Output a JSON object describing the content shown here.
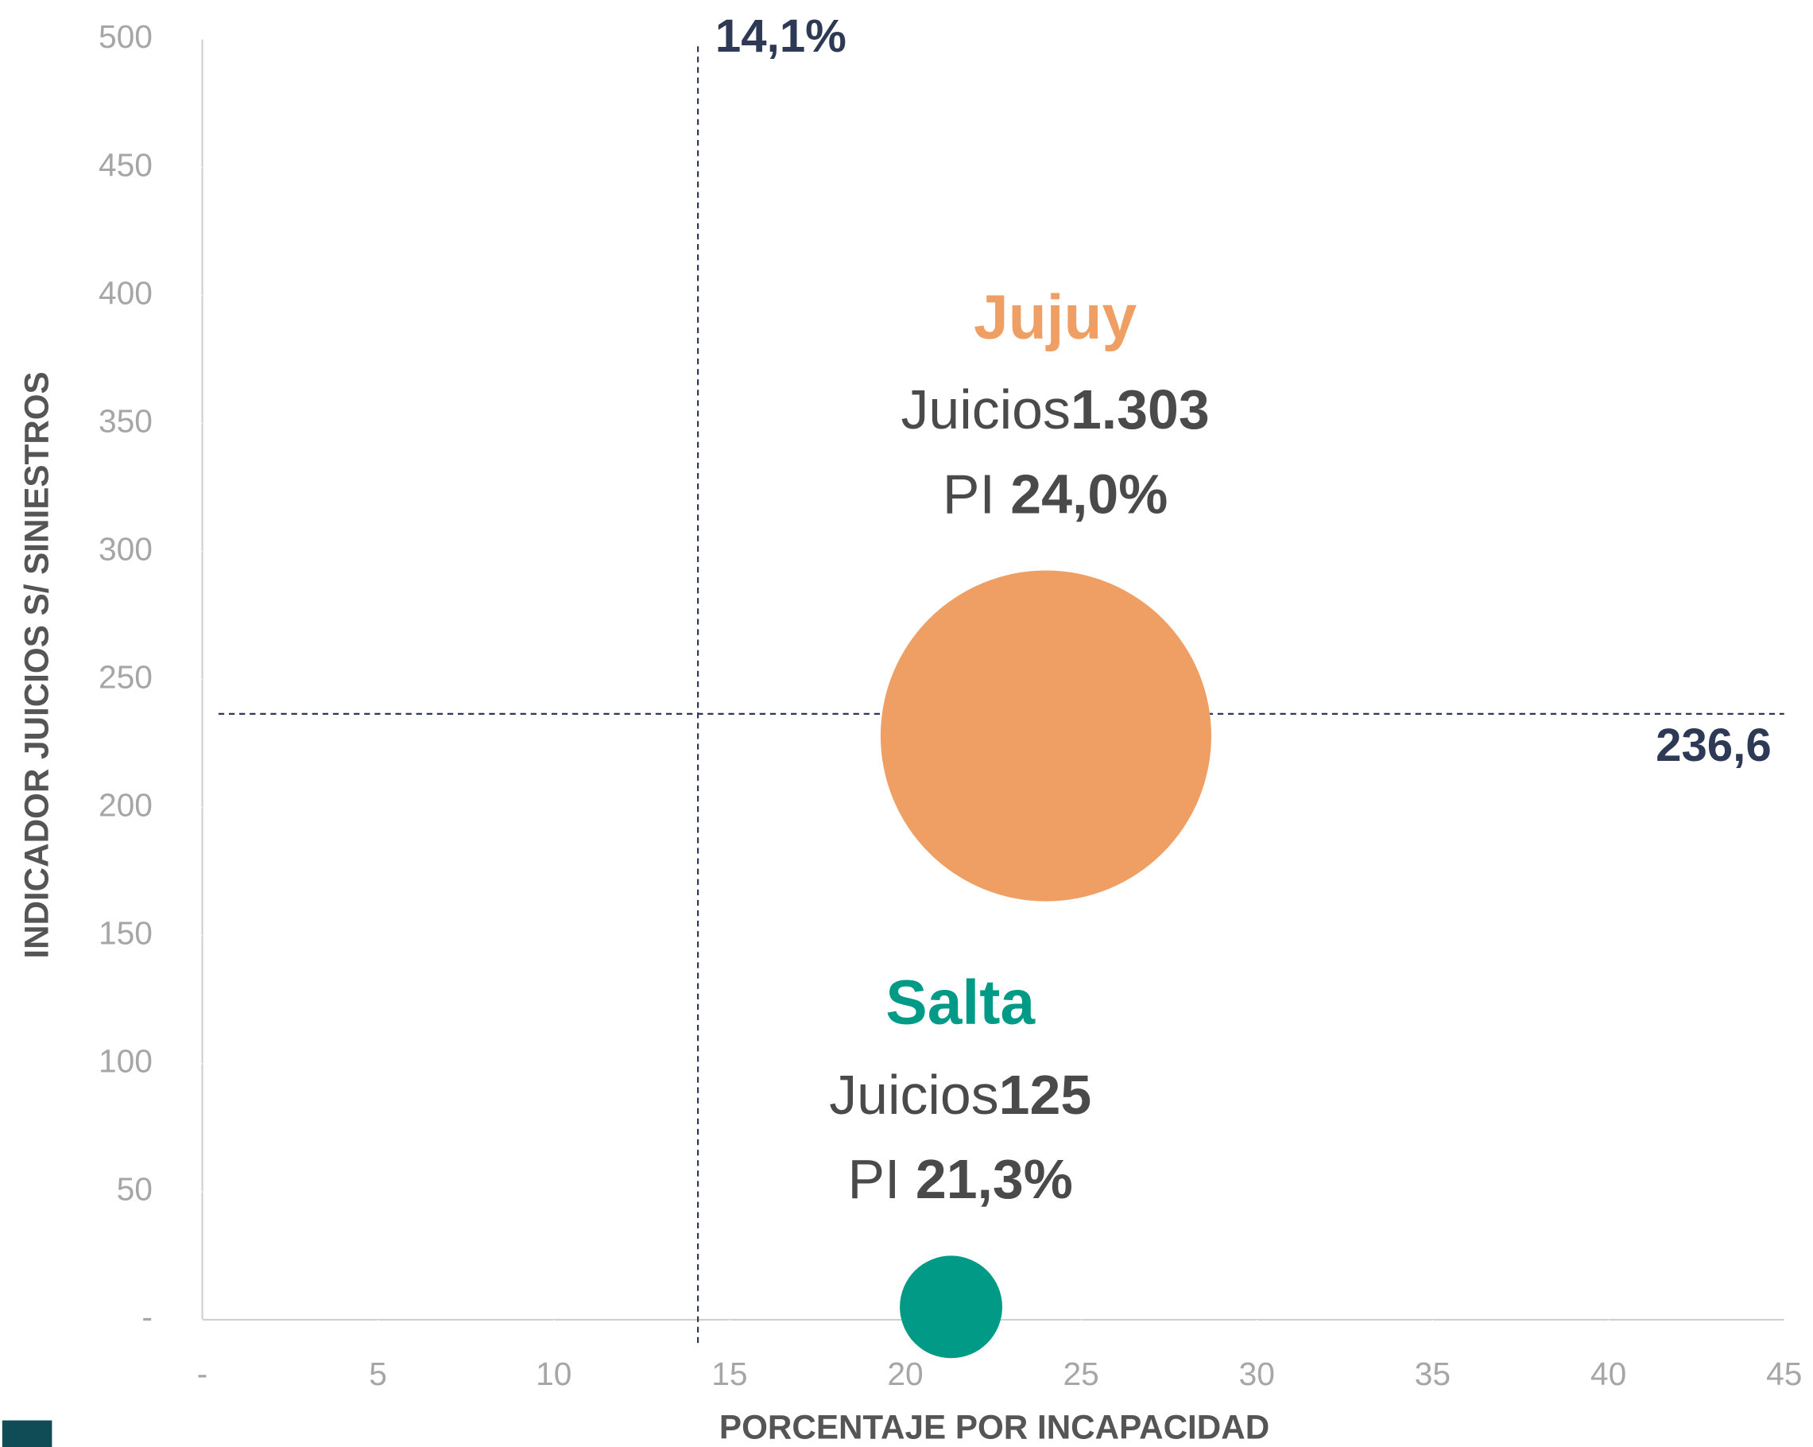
{
  "chart_data": {
    "type": "bubble",
    "xlabel": "PORCENTAJE POR INCAPACIDAD",
    "ylabel": "INDICADOR JUICIOS S/ SINIESTROS",
    "size_prefix": "Juicios",
    "x_prefix": "PI",
    "series": [
      {
        "name": "Jujuy",
        "color": "#ef9f63",
        "x": [
          24.0
        ],
        "values": [
          228
        ],
        "sizes": [
          1303
        ],
        "size_labels": [
          "1.303"
        ],
        "x_labels": [
          "24,0%"
        ]
      },
      {
        "name": "Salta",
        "color": "#009a87",
        "x": [
          21.3
        ],
        "values": [
          5
        ],
        "sizes": [
          125
        ],
        "size_labels": [
          "125"
        ],
        "x_labels": [
          "21,3%"
        ]
      }
    ],
    "reference_lines": [
      {
        "axis": "x",
        "value": 14.1,
        "label": "14,1%"
      },
      {
        "axis": "y",
        "value": 236.6,
        "label": "236,6"
      }
    ],
    "xlim": [
      0,
      45
    ],
    "xticks": [
      {
        "value": 0,
        "label": "-"
      },
      5,
      10,
      15,
      20,
      25,
      30,
      35,
      40,
      45
    ],
    "ylim": [
      0,
      500
    ],
    "yticks": [
      {
        "value": 0,
        "label": "-"
      },
      50,
      100,
      150,
      200,
      250,
      300,
      350,
      400,
      450,
      500
    ]
  }
}
